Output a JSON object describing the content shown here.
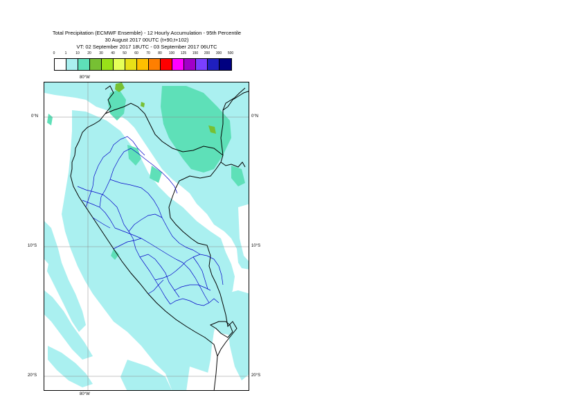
{
  "title": {
    "line1": "Total Precipitation (ECMWF Ensemble) - 12 Hourly Accumulation - 95th Percentile",
    "line2": "30 August 2017 00UTC (t+90,t+102)",
    "line3": "VT: 02 September 2017 18UTC - 03 September 2017 06UTC"
  },
  "legend": {
    "labels": [
      "0",
      "1",
      "10",
      "20",
      "30",
      "40",
      "50",
      "60",
      "70",
      "80",
      "100",
      "125",
      "150",
      "200",
      "300",
      "500"
    ],
    "colors": [
      "#ffffff",
      "#aaf0f0",
      "#5ee0b8",
      "#77c033",
      "#99e018",
      "#e6ff58",
      "#e8e018",
      "#ffbf00",
      "#ff7f00",
      "#ff0000",
      "#ff00ff",
      "#a000c8",
      "#7a3fff",
      "#1f1fbf",
      "#000080"
    ]
  },
  "map": {
    "lon_top": "80°W",
    "lon_bottom": "80°W",
    "lat_left": [
      "0°N",
      "10°S",
      "20°S"
    ],
    "lat_right": [
      "0°N",
      "10°S",
      "20°S"
    ]
  }
}
